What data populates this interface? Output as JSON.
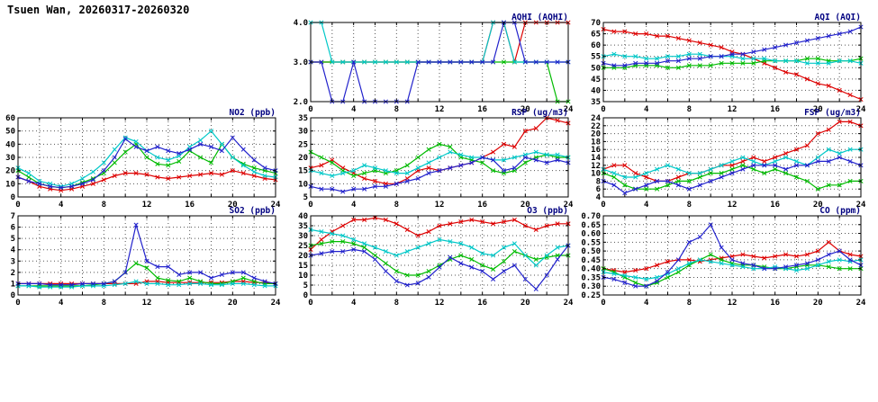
{
  "page": {
    "title": "Tsuen Wan, 20260317-20260320",
    "background": "#ffffff"
  },
  "colors": {
    "axis": "#000000",
    "grid": "#555555",
    "chart_title": "#000080",
    "series": {
      "red": "#dd0000",
      "green": "#00bb00",
      "cyan": "#00c8c8",
      "blue": "#2222cc"
    }
  },
  "x_axis": {
    "min": 0,
    "max": 24,
    "grid_step": 2,
    "labels": [
      0,
      4,
      8,
      12,
      16,
      20,
      24
    ]
  },
  "chart_data": [
    {
      "id": "aqhi",
      "type": "line",
      "marker": "x",
      "title": "AQHI (AQHI)",
      "grid": {
        "row": 0,
        "col": 1
      },
      "ylim": [
        2.0,
        4.0
      ],
      "yticks": [
        2.0,
        3.0,
        4.0
      ],
      "ydec": 1,
      "series": [
        {
          "name": "red",
          "values": [
            3,
            3,
            3,
            3,
            3,
            3,
            3,
            3,
            3,
            3,
            3,
            3,
            3,
            3,
            3,
            3,
            3,
            4,
            4,
            3,
            4,
            4,
            4,
            4,
            4
          ]
        },
        {
          "name": "green",
          "values": [
            3,
            3,
            3,
            3,
            3,
            3,
            3,
            3,
            3,
            3,
            3,
            3,
            3,
            3,
            3,
            3,
            3,
            3,
            3,
            3,
            3,
            3,
            3,
            2,
            2
          ]
        },
        {
          "name": "cyan",
          "values": [
            4,
            4,
            3,
            3,
            3,
            3,
            3,
            3,
            3,
            3,
            3,
            3,
            3,
            3,
            3,
            3,
            3,
            4,
            4,
            3,
            3,
            3,
            3,
            3,
            3
          ]
        },
        {
          "name": "blue",
          "values": [
            3,
            3,
            2,
            2,
            3,
            2,
            2,
            2,
            2,
            2,
            3,
            3,
            3,
            3,
            3,
            3,
            3,
            3,
            4,
            4,
            3,
            3,
            3,
            3,
            3
          ]
        }
      ]
    },
    {
      "id": "aqi",
      "type": "line",
      "marker": "x",
      "title": "AQI (AQI)",
      "grid": {
        "row": 0,
        "col": 2
      },
      "ylim": [
        35,
        70
      ],
      "yticks": [
        35,
        40,
        45,
        50,
        55,
        60,
        65,
        70
      ],
      "ydec": 0,
      "series": [
        {
          "name": "red",
          "values": [
            67,
            66,
            66,
            65,
            65,
            64,
            64,
            63,
            62,
            61,
            60,
            59,
            57,
            56,
            54,
            52,
            50,
            48,
            47,
            45,
            43,
            42,
            40,
            38,
            36
          ]
        },
        {
          "name": "green",
          "values": [
            50,
            50,
            50,
            51,
            51,
            51,
            50,
            50,
            51,
            51,
            51,
            52,
            52,
            52,
            52,
            53,
            53,
            53,
            53,
            54,
            54,
            53,
            53,
            53,
            54
          ]
        },
        {
          "name": "cyan",
          "values": [
            55,
            56,
            55,
            55,
            54,
            54,
            55,
            55,
            56,
            56,
            55,
            55,
            55,
            54,
            54,
            54,
            53,
            53,
            53,
            52,
            52,
            52,
            53,
            53,
            52
          ]
        },
        {
          "name": "blue",
          "values": [
            52,
            51,
            51,
            52,
            52,
            52,
            53,
            53,
            54,
            54,
            55,
            55,
            56,
            56,
            57,
            58,
            59,
            60,
            61,
            62,
            63,
            64,
            65,
            66,
            68
          ]
        }
      ]
    },
    {
      "id": "no2",
      "type": "line",
      "marker": "x",
      "title": "NO2 (ppb)",
      "grid": {
        "row": 1,
        "col": 0
      },
      "ylim": [
        0,
        60
      ],
      "yticks": [
        0,
        10,
        20,
        30,
        40,
        50,
        60
      ],
      "ydec": 0,
      "series": [
        {
          "name": "red",
          "values": [
            15,
            12,
            8,
            6,
            5,
            6,
            8,
            10,
            13,
            16,
            18,
            18,
            17,
            15,
            14,
            15,
            16,
            17,
            18,
            17,
            20,
            18,
            16,
            14,
            13
          ]
        },
        {
          "name": "green",
          "values": [
            20,
            15,
            10,
            8,
            7,
            8,
            11,
            14,
            18,
            26,
            34,
            40,
            30,
            25,
            24,
            27,
            35,
            30,
            26,
            40,
            30,
            25,
            22,
            20,
            18
          ]
        },
        {
          "name": "cyan",
          "values": [
            22,
            18,
            12,
            10,
            8,
            10,
            14,
            19,
            26,
            36,
            45,
            42,
            35,
            30,
            28,
            31,
            38,
            43,
            50,
            40,
            30,
            24,
            19,
            16,
            15
          ]
        },
        {
          "name": "blue",
          "values": [
            15,
            12,
            10,
            8,
            7,
            8,
            10,
            13,
            20,
            30,
            44,
            38,
            35,
            38,
            35,
            33,
            36,
            40,
            38,
            35,
            45,
            36,
            28,
            22,
            20
          ]
        }
      ]
    },
    {
      "id": "rsp",
      "type": "line",
      "marker": "x",
      "title": "RSP (ug/m3)",
      "grid": {
        "row": 1,
        "col": 1
      },
      "ylim": [
        5,
        35
      ],
      "yticks": [
        5,
        10,
        15,
        20,
        25,
        30,
        35
      ],
      "ydec": 0,
      "series": [
        {
          "name": "red",
          "values": [
            16,
            17,
            19,
            16,
            14,
            12,
            11,
            10,
            10,
            12,
            15,
            16,
            15,
            16,
            17,
            18,
            20,
            22,
            25,
            24,
            30,
            31,
            35,
            34,
            33
          ]
        },
        {
          "name": "green",
          "values": [
            22,
            20,
            18,
            15,
            13,
            14,
            15,
            14,
            15,
            17,
            20,
            23,
            25,
            24,
            20,
            19,
            18,
            15,
            14,
            15,
            18,
            20,
            21,
            20,
            20
          ]
        },
        {
          "name": "cyan",
          "values": [
            15,
            14,
            13,
            14,
            15,
            17,
            16,
            15,
            14,
            14,
            16,
            18,
            20,
            22,
            21,
            20,
            20,
            19,
            19,
            20,
            21,
            22,
            21,
            21,
            20
          ]
        },
        {
          "name": "blue",
          "values": [
            9,
            8,
            8,
            7,
            8,
            8,
            9,
            9,
            10,
            11,
            12,
            14,
            15,
            16,
            17,
            18,
            20,
            19,
            15,
            16,
            20,
            19,
            18,
            19,
            18
          ]
        }
      ]
    },
    {
      "id": "fsp",
      "type": "line",
      "marker": "x",
      "title": "FSP (ug/m3)",
      "grid": {
        "row": 1,
        "col": 2
      },
      "ylim": [
        4,
        24
      ],
      "yticks": [
        4,
        6,
        8,
        10,
        12,
        14,
        16,
        18,
        20,
        22,
        24
      ],
      "ydec": 0,
      "series": [
        {
          "name": "red",
          "values": [
            11,
            12,
            12,
            10,
            9,
            8,
            8,
            9,
            10,
            10,
            11,
            12,
            12,
            13,
            14,
            13,
            14,
            15,
            16,
            17,
            20,
            21,
            23,
            23,
            22
          ]
        },
        {
          "name": "green",
          "values": [
            10,
            9,
            7,
            6,
            6,
            6,
            7,
            8,
            8,
            9,
            10,
            10,
            11,
            12,
            11,
            10,
            11,
            10,
            9,
            8,
            6,
            7,
            7,
            8,
            8
          ]
        },
        {
          "name": "cyan",
          "values": [
            11,
            10,
            9,
            9,
            10,
            11,
            12,
            11,
            10,
            10,
            11,
            12,
            13,
            14,
            13,
            12,
            13,
            14,
            13,
            12,
            14,
            16,
            15,
            16,
            16
          ]
        },
        {
          "name": "blue",
          "values": [
            8,
            7,
            5,
            6,
            7,
            8,
            8,
            7,
            6,
            7,
            8,
            9,
            10,
            11,
            12,
            12,
            12,
            11,
            12,
            12,
            13,
            13,
            14,
            13,
            12
          ]
        }
      ]
    },
    {
      "id": "so2",
      "type": "line",
      "marker": "x",
      "title": "SO2 (ppb)",
      "grid": {
        "row": 2,
        "col": 0
      },
      "ylim": [
        0,
        7
      ],
      "yticks": [
        0,
        1,
        2,
        3,
        4,
        5,
        6,
        7
      ],
      "ydec": 0,
      "series": [
        {
          "name": "red",
          "values": [
            1,
            1,
            1,
            1,
            1,
            1,
            1,
            1,
            1,
            1,
            1,
            1,
            1.2,
            1.2,
            1.1,
            1.1,
            1.1,
            1.1,
            1.1,
            1.1,
            1.2,
            1.2,
            1.1,
            1.1,
            1
          ]
        },
        {
          "name": "green",
          "values": [
            0.8,
            0.8,
            0.8,
            0.8,
            0.8,
            0.8,
            0.8,
            0.9,
            1,
            1.2,
            2,
            2.8,
            2.4,
            1.5,
            1.3,
            1.2,
            1.5,
            1.2,
            1,
            1,
            1.2,
            1.5,
            1.2,
            1,
            1
          ]
        },
        {
          "name": "cyan",
          "values": [
            0.8,
            0.8,
            0.7,
            0.7,
            0.7,
            0.7,
            0.8,
            0.8,
            0.8,
            0.9,
            1,
            1.2,
            1,
            1,
            0.9,
            0.9,
            1,
            1,
            0.9,
            0.9,
            1,
            1,
            0.9,
            0.8,
            0.8
          ]
        },
        {
          "name": "blue",
          "values": [
            1,
            1,
            1,
            0.9,
            0.9,
            0.9,
            1,
            1,
            1,
            1.2,
            2,
            6.2,
            3,
            2.5,
            2.5,
            1.8,
            2,
            2,
            1.5,
            1.8,
            2,
            2,
            1.5,
            1.2,
            1
          ]
        }
      ]
    },
    {
      "id": "o3",
      "type": "line",
      "marker": "x",
      "title": "O3 (ppb)",
      "grid": {
        "row": 2,
        "col": 1
      },
      "ylim": [
        0,
        40
      ],
      "yticks": [
        0,
        5,
        10,
        15,
        20,
        25,
        30,
        35,
        40
      ],
      "ydec": 0,
      "series": [
        {
          "name": "red",
          "values": [
            23,
            28,
            32,
            35,
            38,
            38,
            39,
            38,
            36,
            33,
            30,
            32,
            35,
            36,
            37,
            38,
            37,
            36,
            37,
            38,
            35,
            33,
            35,
            36,
            36
          ]
        },
        {
          "name": "green",
          "values": [
            25,
            26,
            27,
            27,
            26,
            24,
            20,
            16,
            12,
            10,
            10,
            12,
            15,
            18,
            20,
            18,
            15,
            13,
            17,
            22,
            20,
            18,
            19,
            20,
            20
          ]
        },
        {
          "name": "cyan",
          "values": [
            33,
            32,
            31,
            30,
            28,
            26,
            24,
            22,
            20,
            22,
            24,
            26,
            28,
            27,
            26,
            24,
            21,
            20,
            24,
            26,
            20,
            15,
            20,
            24,
            25
          ]
        },
        {
          "name": "blue",
          "values": [
            20,
            21,
            22,
            22,
            23,
            22,
            18,
            12,
            7,
            5,
            6,
            9,
            14,
            19,
            16,
            14,
            12,
            8,
            12,
            15,
            8,
            3,
            10,
            18,
            25
          ]
        }
      ]
    },
    {
      "id": "co",
      "type": "line",
      "marker": "x",
      "title": "CO (ppm)",
      "grid": {
        "row": 2,
        "col": 2
      },
      "ylim": [
        0.25,
        0.7
      ],
      "yticks": [
        0.25,
        0.3,
        0.35,
        0.4,
        0.45,
        0.5,
        0.55,
        0.6,
        0.65,
        0.7
      ],
      "ydec": 2,
      "series": [
        {
          "name": "red",
          "values": [
            0.4,
            0.39,
            0.38,
            0.39,
            0.4,
            0.42,
            0.44,
            0.45,
            0.45,
            0.44,
            0.45,
            0.46,
            0.47,
            0.48,
            0.47,
            0.46,
            0.47,
            0.48,
            0.47,
            0.48,
            0.5,
            0.55,
            0.5,
            0.48,
            0.47
          ]
        },
        {
          "name": "green",
          "values": [
            0.4,
            0.38,
            0.35,
            0.32,
            0.3,
            0.32,
            0.35,
            0.38,
            0.42,
            0.45,
            0.48,
            0.45,
            0.43,
            0.42,
            0.42,
            0.41,
            0.4,
            0.4,
            0.41,
            0.42,
            0.42,
            0.41,
            0.4,
            0.4,
            0.4
          ]
        },
        {
          "name": "cyan",
          "values": [
            0.38,
            0.37,
            0.36,
            0.35,
            0.34,
            0.35,
            0.37,
            0.4,
            0.43,
            0.45,
            0.44,
            0.43,
            0.42,
            0.41,
            0.4,
            0.4,
            0.41,
            0.4,
            0.39,
            0.4,
            0.42,
            0.44,
            0.45,
            0.44,
            0.45
          ]
        },
        {
          "name": "blue",
          "values": [
            0.35,
            0.34,
            0.32,
            0.3,
            0.3,
            0.33,
            0.38,
            0.45,
            0.55,
            0.58,
            0.65,
            0.52,
            0.45,
            0.43,
            0.42,
            0.4,
            0.4,
            0.41,
            0.42,
            0.43,
            0.45,
            0.48,
            0.5,
            0.45,
            0.42
          ]
        }
      ]
    }
  ]
}
